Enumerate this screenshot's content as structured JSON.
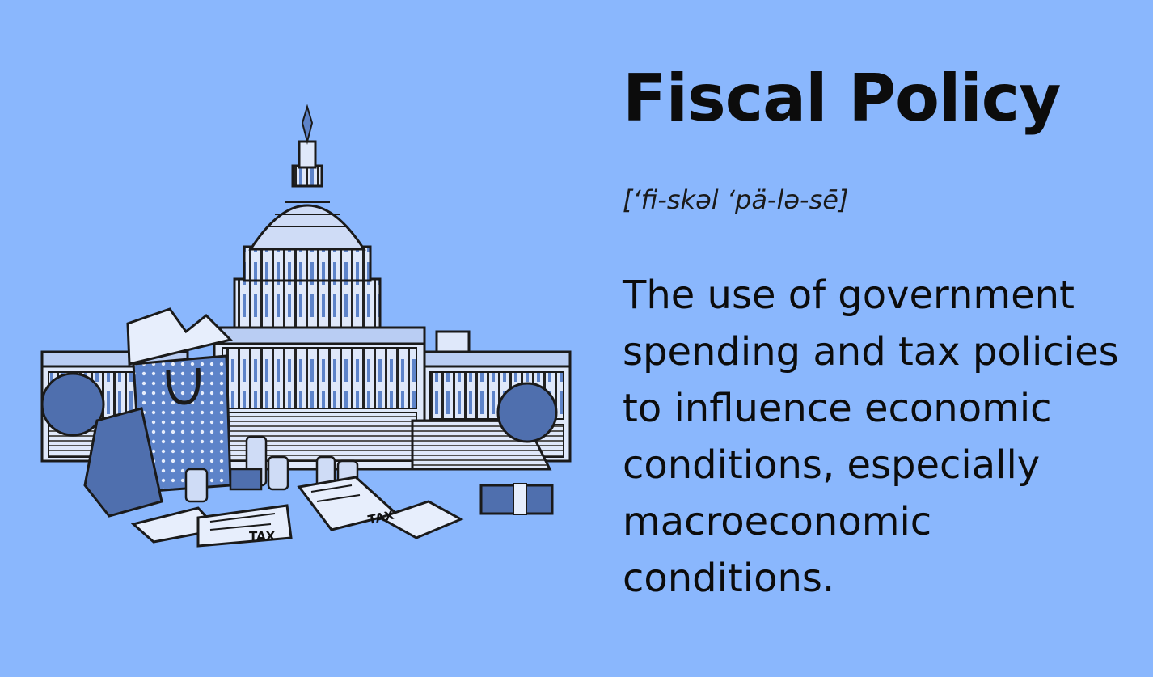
{
  "term": "Fiscal Policy",
  "pronunciation": "[‘fi-skəl ʻpä-lə-sē]",
  "definition": "The use of government spending and tax policies to influence economic conditions, especially macroeconomic conditions.",
  "illustration": {
    "tax_label_1": "TAX",
    "tax_label_2": "TAX"
  },
  "colors": {
    "background": "#8ab7fd",
    "ink": "#111111",
    "illustration_blue": "#5d83c9",
    "illustration_light": "#cfdcf6"
  }
}
